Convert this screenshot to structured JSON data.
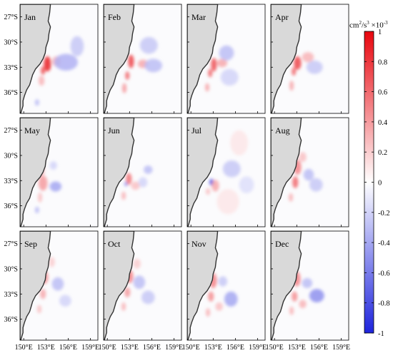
{
  "chart_data": {
    "type": "heatmap",
    "panels": [
      "Jan",
      "Feb",
      "Mar",
      "Apr",
      "May",
      "Jun",
      "Jul",
      "Aug",
      "Sep",
      "Oct",
      "Nov",
      "Dec"
    ],
    "layout": {
      "rows": 3,
      "cols": 4
    },
    "x_ticks": [
      "150°E",
      "153°E",
      "156°E",
      "159°E"
    ],
    "x_tick_values": [
      150,
      153,
      156,
      159
    ],
    "xlim": [
      149.5,
      160
    ],
    "y_ticks": [
      "27°S",
      "30°S",
      "33°S",
      "36°S"
    ],
    "y_tick_values": [
      -27,
      -30,
      -33,
      -36
    ],
    "ylim": [
      -38.5,
      -25.5
    ],
    "colorbar": {
      "unit_prefix": "cm",
      "unit_sup1": "2",
      "unit_mid": "/s",
      "unit_sup2": "3",
      "unit_factor": " ×10",
      "unit_sup3": "-3",
      "range": [
        -1,
        1
      ],
      "tick_values": [
        1,
        0.8,
        0.6,
        0.4,
        0.2,
        0,
        -0.2,
        -0.4,
        -0.6,
        -0.8,
        -1
      ],
      "tick_labels": [
        "1",
        "0.8",
        "0.6",
        "0.4",
        "0.2",
        "0",
        "-0.2",
        "-0.4",
        "-0.6",
        "-0.8",
        "-1"
      ],
      "colors": {
        "max": "#e8060e",
        "zero": "#ffffff",
        "min": "#1e24dc"
      }
    },
    "land_color": "#d9d9d9",
    "coast_color": "#333333",
    "features": [
      {
        "panel": "Jan",
        "blobs": [
          [
            153.2,
            -32.6,
            0.5,
            0.9,
            0.9
          ],
          [
            152.6,
            -33.4,
            0.3,
            0.5,
            0.7
          ],
          [
            154.4,
            -32.3,
            0.6,
            0.6,
            0.3
          ],
          [
            155.7,
            -32.4,
            1.6,
            1.0,
            -0.35
          ],
          [
            157.2,
            -30.5,
            0.9,
            1.2,
            -0.25
          ],
          [
            152.4,
            -34.6,
            0.4,
            0.6,
            0.3
          ],
          [
            151.8,
            -37.2,
            0.3,
            0.4,
            -0.3
          ]
        ]
      },
      {
        "panel": "Feb",
        "blobs": [
          [
            153.2,
            -32.3,
            0.4,
            0.8,
            0.75
          ],
          [
            152.7,
            -34.0,
            0.3,
            0.5,
            0.6
          ],
          [
            154.8,
            -32.6,
            0.7,
            0.5,
            0.35
          ],
          [
            156.2,
            -32.8,
            1.2,
            0.8,
            -0.3
          ],
          [
            155.6,
            -30.4,
            1.2,
            1.0,
            -0.25
          ],
          [
            152.3,
            -35.5,
            0.3,
            0.6,
            0.4
          ]
        ]
      },
      {
        "panel": "Mar",
        "blobs": [
          [
            153.1,
            -32.7,
            0.4,
            0.8,
            0.7
          ],
          [
            152.6,
            -33.7,
            0.3,
            0.5,
            0.6
          ],
          [
            154.2,
            -32.5,
            0.7,
            0.5,
            0.35
          ],
          [
            154.8,
            -31.3,
            1.0,
            0.9,
            -0.3
          ],
          [
            155.2,
            -34.2,
            1.2,
            1.0,
            -0.2
          ],
          [
            152.2,
            -35.4,
            0.3,
            0.5,
            0.35
          ]
        ]
      },
      {
        "panel": "Apr",
        "blobs": [
          [
            153.1,
            -32.5,
            0.5,
            0.8,
            0.75
          ],
          [
            152.6,
            -33.5,
            0.3,
            0.5,
            0.6
          ],
          [
            154.5,
            -31.8,
            0.8,
            0.6,
            0.3
          ],
          [
            155.4,
            -33.0,
            1.1,
            0.8,
            -0.25
          ],
          [
            152.3,
            -35.2,
            0.3,
            0.6,
            0.35
          ]
        ]
      },
      {
        "panel": "May",
        "blobs": [
          [
            152.6,
            -33.3,
            0.6,
            0.9,
            0.4
          ],
          [
            152.3,
            -31.8,
            0.5,
            0.8,
            0.3
          ],
          [
            154.3,
            -33.7,
            0.8,
            0.6,
            -0.4
          ],
          [
            154.0,
            -31.2,
            0.5,
            0.5,
            -0.2
          ],
          [
            152.2,
            -35.0,
            0.3,
            0.6,
            0.25
          ],
          [
            151.8,
            -36.5,
            0.3,
            0.4,
            -0.3
          ]
        ]
      },
      {
        "panel": "Jun",
        "blobs": [
          [
            152.9,
            -32.8,
            0.4,
            0.7,
            0.55
          ],
          [
            152.5,
            -33.4,
            0.2,
            0.3,
            -0.5
          ],
          [
            153.8,
            -33.6,
            0.6,
            0.5,
            0.25
          ],
          [
            155.5,
            -31.7,
            0.6,
            0.5,
            -0.3
          ],
          [
            154.8,
            -33.2,
            0.6,
            0.6,
            -0.2
          ],
          [
            152.2,
            -34.8,
            0.3,
            0.5,
            0.3
          ]
        ]
      },
      {
        "panel": "Jul",
        "blobs": [
          [
            152.8,
            -33.2,
            0.3,
            0.4,
            -0.85
          ],
          [
            153.3,
            -33.6,
            0.5,
            0.7,
            0.35
          ],
          [
            152.3,
            -34.3,
            0.3,
            0.4,
            0.25
          ],
          [
            155.5,
            -31.6,
            1.2,
            1.0,
            -0.25
          ],
          [
            156.5,
            -28.5,
            1.2,
            1.5,
            0.1
          ],
          [
            155.0,
            -35.5,
            1.5,
            1.5,
            0.1
          ],
          [
            157.5,
            -33.5,
            1.0,
            1.0,
            -0.15
          ]
        ]
      },
      {
        "panel": "Aug",
        "blobs": [
          [
            153.1,
            -31.4,
            0.5,
            0.9,
            0.5
          ],
          [
            152.8,
            -33.2,
            0.4,
            0.7,
            0.6
          ],
          [
            154.6,
            -32.3,
            0.7,
            0.7,
            -0.3
          ],
          [
            155.6,
            -33.5,
            0.9,
            0.8,
            -0.25
          ],
          [
            153.8,
            -30.2,
            0.5,
            0.6,
            0.25
          ],
          [
            152.2,
            -35.0,
            0.3,
            0.5,
            0.3
          ]
        ]
      },
      {
        "panel": "Sep",
        "blobs": [
          [
            152.8,
            -31.0,
            0.5,
            0.8,
            0.45
          ],
          [
            152.6,
            -33.0,
            0.4,
            0.6,
            0.35
          ],
          [
            154.6,
            -31.8,
            0.8,
            0.8,
            -0.3
          ],
          [
            155.6,
            -33.8,
            0.8,
            0.7,
            -0.2
          ],
          [
            153.8,
            -29.2,
            0.4,
            0.6,
            0.2
          ],
          [
            152.1,
            -34.8,
            0.3,
            0.5,
            0.25
          ]
        ]
      },
      {
        "panel": "Oct",
        "blobs": [
          [
            153.0,
            -30.9,
            0.5,
            0.8,
            0.5
          ],
          [
            152.7,
            -32.8,
            0.4,
            0.6,
            0.4
          ],
          [
            154.3,
            -31.6,
            0.8,
            0.8,
            -0.3
          ],
          [
            155.5,
            -33.4,
            0.9,
            0.8,
            -0.25
          ],
          [
            154.0,
            -29.4,
            0.5,
            0.6,
            0.2
          ],
          [
            152.2,
            -34.5,
            0.3,
            0.5,
            0.3
          ]
        ]
      },
      {
        "panel": "Nov",
        "blobs": [
          [
            153.0,
            -31.4,
            0.5,
            0.9,
            0.5
          ],
          [
            152.7,
            -33.3,
            0.4,
            0.6,
            0.45
          ],
          [
            155.4,
            -33.6,
            0.9,
            0.9,
            -0.4
          ],
          [
            154.3,
            -31.5,
            0.6,
            0.6,
            -0.25
          ],
          [
            153.8,
            -34.5,
            0.5,
            0.5,
            0.25
          ],
          [
            152.3,
            -35.2,
            0.3,
            0.5,
            0.3
          ]
        ]
      },
      {
        "panel": "Dec",
        "blobs": [
          [
            153.0,
            -31.2,
            0.5,
            0.9,
            0.5
          ],
          [
            152.7,
            -33.3,
            0.4,
            0.6,
            0.45
          ],
          [
            155.7,
            -33.2,
            1.0,
            0.8,
            -0.5
          ],
          [
            154.4,
            -31.7,
            0.7,
            0.6,
            -0.3
          ],
          [
            153.8,
            -34.2,
            0.5,
            0.5,
            0.3
          ],
          [
            152.3,
            -35.0,
            0.3,
            0.5,
            0.3
          ]
        ]
      }
    ]
  }
}
